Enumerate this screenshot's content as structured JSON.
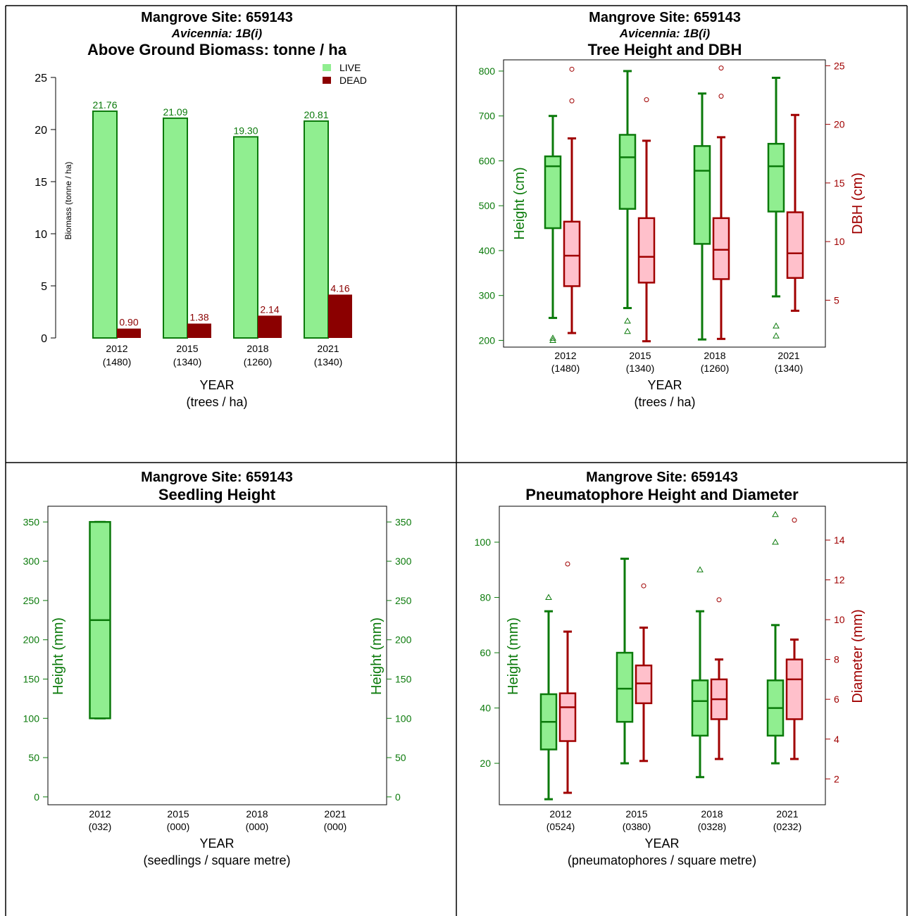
{
  "colors": {
    "live_fill": "#90ee90",
    "live_stroke": "#0b7a0b",
    "dead_fill": "#8b0000",
    "dbh_fill": "#ffc0cb",
    "dbh_stroke": "#a00000",
    "green_text": "#0b7a0b",
    "red_text": "#a00000"
  },
  "chart_data": [
    {
      "type": "bar",
      "title_lines": [
        "Mangrove Site: 659143",
        "Avicennia: 1B(i)",
        "Above Ground Biomass: tonne / ha"
      ],
      "xlabel": "YEAR",
      "xlabel2": "(trees / ha)",
      "ylabel": "Biomass (tonne / ha)",
      "ylim": [
        0,
        25
      ],
      "yticks": [
        "0",
        "5",
        "10",
        "15",
        "20",
        "25"
      ],
      "categories": [
        "2012",
        "2015",
        "2018",
        "2021"
      ],
      "category_sublabels": [
        "(1480)",
        "(1340)",
        "(1260)",
        "(1340)"
      ],
      "legend": [
        "LIVE",
        "DEAD"
      ],
      "legend_position": "top-right",
      "series": [
        {
          "name": "LIVE",
          "values": [
            21.76,
            21.09,
            19.3,
            20.81
          ],
          "labels": [
            "21.76",
            "21.09",
            "19.30",
            "20.81"
          ]
        },
        {
          "name": "DEAD",
          "values": [
            0.9,
            1.38,
            2.14,
            4.16
          ],
          "labels": [
            "0.90",
            "1.38",
            "2.14",
            "4.16"
          ]
        }
      ]
    },
    {
      "type": "boxplot",
      "title_lines": [
        "Mangrove Site: 659143",
        "Avicennia: 1B(i)",
        "Tree Height and DBH"
      ],
      "xlabel": "YEAR",
      "xlabel2": "(trees / ha)",
      "ylabel_left": "Height (cm)",
      "ylabel_right": "DBH (cm)",
      "ylim_left": [
        185,
        825
      ],
      "ylim_right": [
        1,
        25.5
      ],
      "yticks_left": [
        "200",
        "300",
        "400",
        "500",
        "600",
        "700",
        "800"
      ],
      "yticks_right": [
        "5",
        "10",
        "15",
        "20",
        "25"
      ],
      "categories": [
        "2012",
        "2015",
        "2018",
        "2021"
      ],
      "category_sublabels": [
        "(1480)",
        "(1340)",
        "(1260)",
        "(1340)"
      ],
      "series": [
        {
          "axis": "left",
          "boxes": [
            {
              "lw": 250,
              "q1": 450,
              "med": 588,
              "q3": 610,
              "uw": 700,
              "out": [
                205,
                200
              ]
            },
            {
              "lw": 272,
              "q1": 493,
              "med": 608,
              "q3": 658,
              "uw": 800,
              "out": [
                243,
                220
              ]
            },
            {
              "lw": 202,
              "q1": 415,
              "med": 578,
              "q3": 633,
              "uw": 750,
              "out": []
            },
            {
              "lw": 298,
              "q1": 487,
              "med": 588,
              "q3": 638,
              "uw": 785,
              "out": [
                232,
                210
              ]
            }
          ]
        },
        {
          "axis": "right",
          "boxes": [
            {
              "lw": 2.2,
              "q1": 6.2,
              "med": 8.8,
              "q3": 11.7,
              "uw": 18.8,
              "out": [
                22.0,
                24.7
              ]
            },
            {
              "lw": 1.5,
              "q1": 6.5,
              "med": 8.7,
              "q3": 12.0,
              "uw": 18.6,
              "out": [
                22.1
              ]
            },
            {
              "lw": 1.7,
              "q1": 6.8,
              "med": 9.3,
              "q3": 12.0,
              "uw": 18.9,
              "out": [
                22.4,
                24.8
              ]
            },
            {
              "lw": 4.1,
              "q1": 6.9,
              "med": 9.0,
              "q3": 12.5,
              "uw": 20.8,
              "out": []
            }
          ]
        }
      ]
    },
    {
      "type": "boxplot",
      "title_lines": [
        "Mangrove Site: 659143",
        "Seedling Height"
      ],
      "xlabel": "YEAR",
      "xlabel2": "(seedlings / square metre)",
      "ylabel_left": "Height (mm)",
      "ylabel_right": "Height (mm)",
      "ylim": [
        -10,
        370
      ],
      "yticks": [
        "0",
        "50",
        "100",
        "150",
        "200",
        "250",
        "300",
        "350"
      ],
      "categories": [
        "2012",
        "2015",
        "2018",
        "2021"
      ],
      "category_sublabels": [
        "(032)",
        "(000)",
        "(000)",
        "(000)"
      ],
      "series": [
        {
          "axis": "left",
          "boxes": [
            {
              "lw": 100,
              "q1": 100,
              "med": 225,
              "q3": 350,
              "uw": 350,
              "out": []
            },
            null,
            null,
            null
          ]
        }
      ]
    },
    {
      "type": "boxplot",
      "title_lines": [
        "Mangrove Site: 659143",
        "Pneumatophore Height and Diameter"
      ],
      "xlabel": "YEAR",
      "xlabel2": "(pneumatophores / square metre)",
      "ylabel_left": "Height (mm)",
      "ylabel_right": "Diameter (mm)",
      "ylim_left": [
        5,
        113
      ],
      "ylim_right": [
        0.7,
        15.7
      ],
      "yticks_left": [
        "20",
        "40",
        "60",
        "80",
        "100"
      ],
      "yticks_right": [
        "2",
        "4",
        "6",
        "8",
        "10",
        "12",
        "14"
      ],
      "categories": [
        "2012",
        "2015",
        "2018",
        "2021"
      ],
      "category_sublabels": [
        "(0524)",
        "(0380)",
        "(0328)",
        "(0232)"
      ],
      "series": [
        {
          "axis": "left",
          "boxes": [
            {
              "lw": 7,
              "q1": 25,
              "med": 35,
              "q3": 45,
              "uw": 75,
              "out": [
                80
              ]
            },
            {
              "lw": 20,
              "q1": 35,
              "med": 47,
              "q3": 60,
              "uw": 94,
              "out": []
            },
            {
              "lw": 15,
              "q1": 30,
              "med": 42.5,
              "q3": 50,
              "uw": 75,
              "out": [
                90
              ]
            },
            {
              "lw": 20,
              "q1": 30,
              "med": 40,
              "q3": 50,
              "uw": 70,
              "out": [
                100,
                110
              ]
            }
          ]
        },
        {
          "axis": "right",
          "boxes": [
            {
              "lw": 1.3,
              "q1": 3.9,
              "med": 5.6,
              "q3": 6.3,
              "uw": 9.4,
              "out": [
                12.8
              ]
            },
            {
              "lw": 2.9,
              "q1": 5.8,
              "med": 6.8,
              "q3": 7.7,
              "uw": 9.6,
              "out": [
                11.7
              ]
            },
            {
              "lw": 3.0,
              "q1": 5.0,
              "med": 6.0,
              "q3": 7.0,
              "uw": 8.0,
              "out": [
                11.0
              ]
            },
            {
              "lw": 3.0,
              "q1": 5.0,
              "med": 7.0,
              "q3": 8.0,
              "uw": 9.0,
              "out": [
                15.0
              ]
            }
          ]
        }
      ]
    }
  ]
}
